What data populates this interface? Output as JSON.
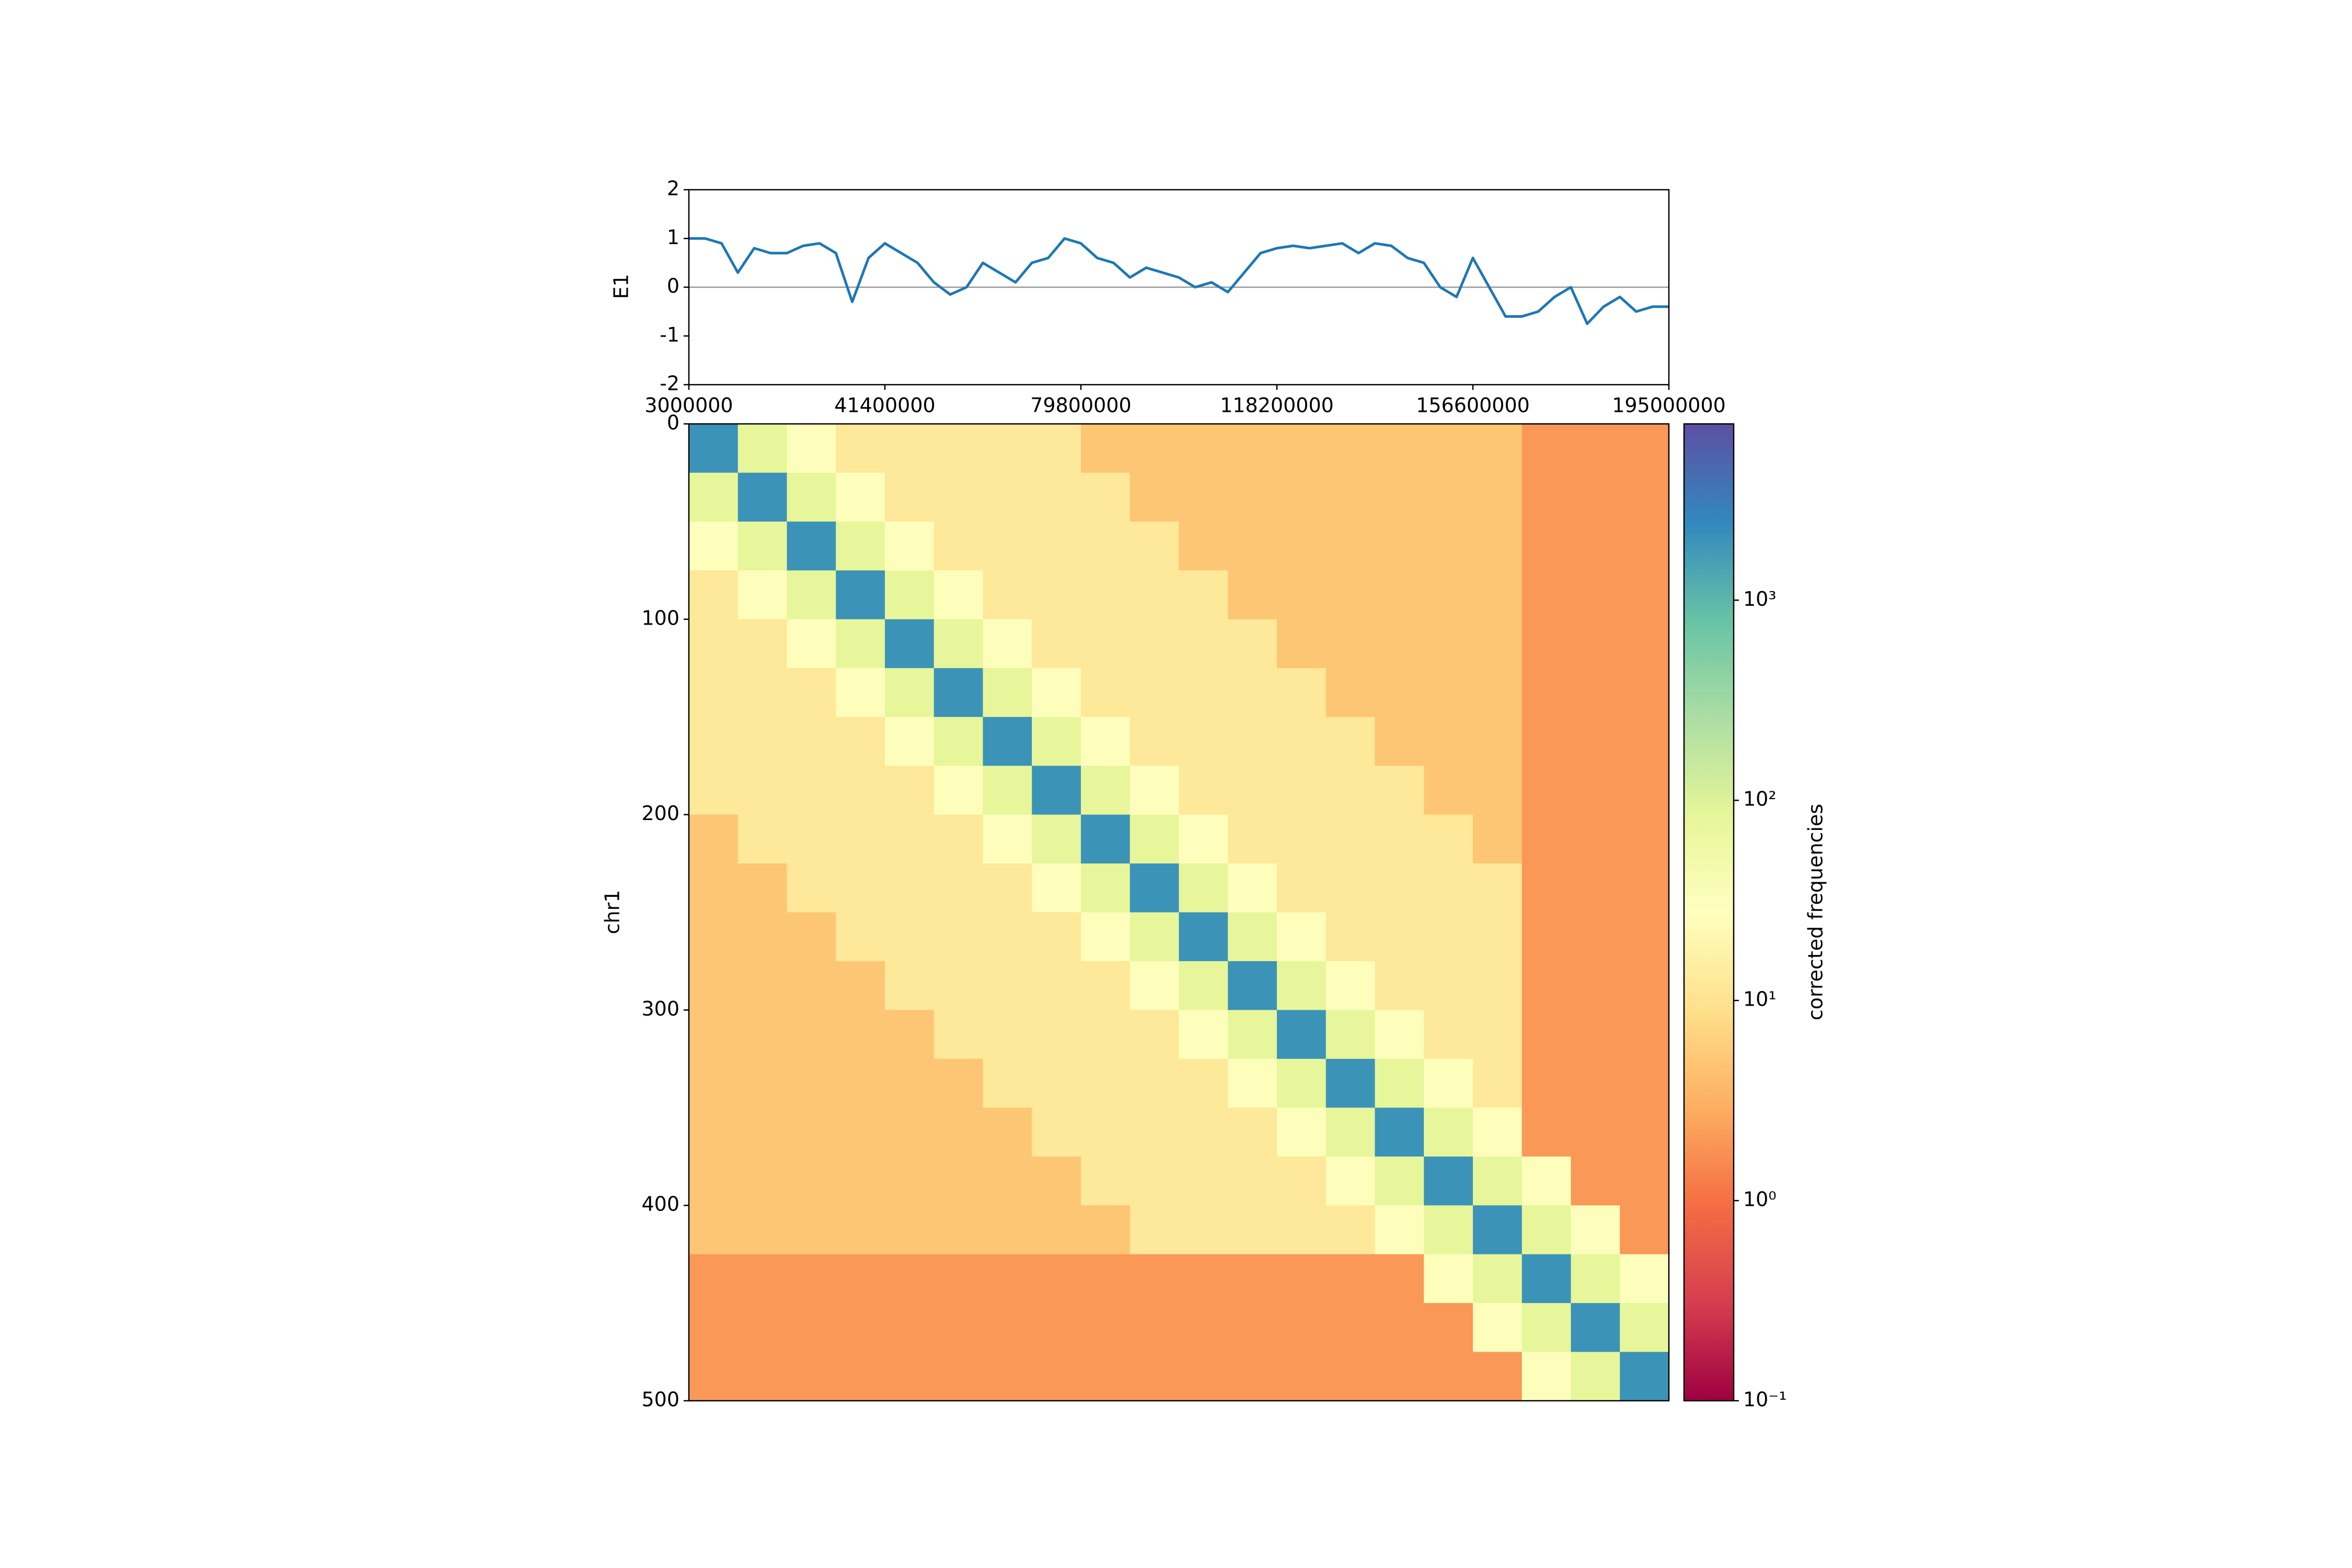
{
  "chart_data": [
    {
      "type": "line",
      "ylabel": "E1",
      "x": [
        3000000,
        6200000,
        9400000,
        12600000,
        15800000,
        19000000,
        22200000,
        25400000,
        28600000,
        31800000,
        35000000,
        38200000,
        41400000,
        44600000,
        47800000,
        51000000,
        54200000,
        57400000,
        60600000,
        63800000,
        67000000,
        70200000,
        73400000,
        76600000,
        79800000,
        83000000,
        86200000,
        89400000,
        92600000,
        95800000,
        99000000,
        102200000,
        105400000,
        108600000,
        111800000,
        115000000,
        118200000,
        121400000,
        124600000,
        127800000,
        131000000,
        134200000,
        137400000,
        140600000,
        143800000,
        147000000,
        150200000,
        153400000,
        156600000,
        159800000,
        163000000,
        166200000,
        169400000,
        172600000,
        175800000,
        179000000,
        182200000,
        185400000,
        188600000,
        191800000,
        195000000
      ],
      "series": [
        {
          "name": "E1",
          "color": "#1f77b4",
          "values": [
            1.0,
            1.0,
            0.9,
            0.3,
            0.8,
            0.7,
            0.7,
            0.85,
            0.9,
            0.7,
            -0.3,
            0.6,
            0.9,
            0.7,
            0.5,
            0.1,
            -0.15,
            0.0,
            0.5,
            0.3,
            0.1,
            0.5,
            0.6,
            1.0,
            0.9,
            0.6,
            0.5,
            0.2,
            0.4,
            0.3,
            0.2,
            0.0,
            0.1,
            -0.1,
            0.3,
            0.7,
            0.8,
            0.85,
            0.8,
            0.85,
            0.9,
            0.7,
            0.9,
            0.85,
            0.6,
            0.5,
            0.0,
            -0.2,
            0.6,
            0.0,
            -0.6,
            -0.6,
            -0.5,
            -0.2,
            0.0,
            -0.75,
            -0.4,
            -0.2,
            -0.5,
            -0.4,
            -0.4
          ]
        }
      ],
      "xlim": [
        3000000,
        195000000
      ],
      "xticks": [
        3000000,
        41400000,
        79800000,
        118200000,
        156600000,
        195000000
      ],
      "ylim": [
        -2,
        2
      ],
      "yticks": [
        -2,
        -1,
        0,
        1,
        2
      ],
      "hline": 0
    },
    {
      "type": "heatmap",
      "ylabel": "chr1",
      "ylim": [
        0,
        500
      ],
      "yticks": [
        0,
        100,
        200,
        300,
        400,
        500
      ],
      "matrix": [
        [
          2000,
          80,
          30,
          12,
          12,
          12,
          12,
          12,
          5,
          5,
          5,
          5,
          5,
          5,
          5,
          5,
          5,
          2,
          2,
          2
        ],
        [
          80,
          2000,
          80,
          30,
          12,
          12,
          12,
          12,
          12,
          5,
          5,
          5,
          5,
          5,
          5,
          5,
          5,
          2,
          2,
          2
        ],
        [
          30,
          80,
          2000,
          80,
          30,
          12,
          12,
          12,
          12,
          12,
          5,
          5,
          5,
          5,
          5,
          5,
          5,
          2,
          2,
          2
        ],
        [
          12,
          30,
          80,
          2000,
          80,
          30,
          12,
          12,
          12,
          12,
          12,
          5,
          5,
          5,
          5,
          5,
          5,
          2,
          2,
          2
        ],
        [
          12,
          12,
          30,
          80,
          2000,
          80,
          30,
          12,
          12,
          12,
          12,
          12,
          5,
          5,
          5,
          5,
          5,
          2,
          2,
          2
        ],
        [
          12,
          12,
          12,
          30,
          80,
          2000,
          80,
          30,
          12,
          12,
          12,
          12,
          12,
          5,
          5,
          5,
          5,
          2,
          2,
          2
        ],
        [
          12,
          12,
          12,
          12,
          30,
          80,
          2000,
          80,
          30,
          12,
          12,
          12,
          12,
          12,
          5,
          5,
          5,
          2,
          2,
          2
        ],
        [
          12,
          12,
          12,
          12,
          12,
          30,
          80,
          2000,
          80,
          30,
          12,
          12,
          12,
          12,
          12,
          5,
          5,
          2,
          2,
          2
        ],
        [
          5,
          12,
          12,
          12,
          12,
          12,
          30,
          80,
          2000,
          80,
          30,
          12,
          12,
          12,
          12,
          12,
          5,
          2,
          2,
          2
        ],
        [
          5,
          5,
          12,
          12,
          12,
          12,
          12,
          30,
          80,
          2000,
          80,
          30,
          12,
          12,
          12,
          12,
          12,
          2,
          2,
          2
        ],
        [
          5,
          5,
          5,
          12,
          12,
          12,
          12,
          12,
          30,
          80,
          2000,
          80,
          30,
          12,
          12,
          12,
          12,
          2,
          2,
          2
        ],
        [
          5,
          5,
          5,
          5,
          12,
          12,
          12,
          12,
          12,
          30,
          80,
          2000,
          80,
          30,
          12,
          12,
          12,
          2,
          2,
          2
        ],
        [
          5,
          5,
          5,
          5,
          5,
          12,
          12,
          12,
          12,
          12,
          30,
          80,
          2000,
          80,
          30,
          12,
          12,
          2,
          2,
          2
        ],
        [
          5,
          5,
          5,
          5,
          5,
          5,
          12,
          12,
          12,
          12,
          12,
          30,
          80,
          2000,
          80,
          30,
          12,
          2,
          2,
          2
        ],
        [
          5,
          5,
          5,
          5,
          5,
          5,
          5,
          12,
          12,
          12,
          12,
          12,
          30,
          80,
          2000,
          80,
          30,
          2,
          2,
          2
        ],
        [
          5,
          5,
          5,
          5,
          5,
          5,
          5,
          5,
          12,
          12,
          12,
          12,
          12,
          30,
          80,
          2000,
          80,
          30,
          2,
          2
        ],
        [
          5,
          5,
          5,
          5,
          5,
          5,
          5,
          5,
          5,
          12,
          12,
          12,
          12,
          12,
          30,
          80,
          2000,
          80,
          30,
          2
        ],
        [
          2,
          2,
          2,
          2,
          2,
          2,
          2,
          2,
          2,
          2,
          2,
          2,
          2,
          2,
          2,
          30,
          80,
          2000,
          80,
          30
        ],
        [
          2,
          2,
          2,
          2,
          2,
          2,
          2,
          2,
          2,
          2,
          2,
          2,
          2,
          2,
          2,
          2,
          30,
          80,
          2000,
          80
        ],
        [
          2,
          2,
          2,
          2,
          2,
          2,
          2,
          2,
          2,
          2,
          2,
          2,
          2,
          2,
          2,
          2,
          2,
          30,
          80,
          2000
        ]
      ],
      "colorbar": {
        "label": "corrected frequencies",
        "log": true,
        "lim": [
          0.1,
          7600
        ],
        "ticks": [
          {
            "value": 0.1,
            "label": "10⁻¹"
          },
          {
            "value": 1,
            "label": "10⁰"
          },
          {
            "value": 10,
            "label": "10¹"
          },
          {
            "value": 100,
            "label": "10²"
          },
          {
            "value": 1000,
            "label": "10³"
          }
        ],
        "colors": [
          "#9e0142",
          "#d53e4f",
          "#f46d43",
          "#fdae61",
          "#fee08b",
          "#ffffbf",
          "#e6f598",
          "#abdda4",
          "#66c2a5",
          "#3288bd",
          "#5e4fa2"
        ]
      }
    }
  ]
}
